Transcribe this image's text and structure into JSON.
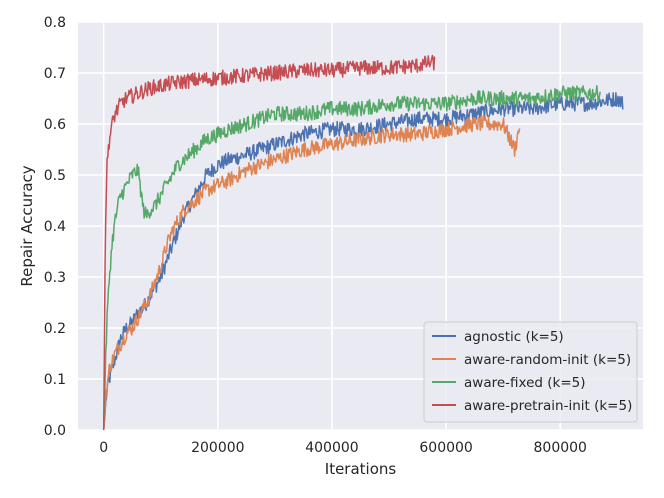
{
  "chart_data": {
    "type": "line",
    "title": "",
    "xlabel": "Iterations",
    "ylabel": "Repair Accuracy",
    "xlim": [
      -45000,
      945000
    ],
    "ylim": [
      0.0,
      0.8
    ],
    "xticks": [
      0,
      200000,
      400000,
      600000,
      800000
    ],
    "xtick_labels": [
      "0",
      "200000",
      "400000",
      "600000",
      "800000"
    ],
    "yticks": [
      0.0,
      0.1,
      0.2,
      0.3,
      0.4,
      0.5,
      0.6,
      0.7,
      0.8
    ],
    "ytick_labels": [
      "0.0",
      "0.1",
      "0.2",
      "0.3",
      "0.4",
      "0.5",
      "0.6",
      "0.7",
      "0.8"
    ],
    "grid": true,
    "legend_position": "bottom-right",
    "series": [
      {
        "name": "agnostic (k=5)",
        "color": "#4c72b0",
        "x": [
          0,
          5000,
          10000,
          20000,
          30000,
          40000,
          50000,
          60000,
          70000,
          80000,
          90000,
          100000,
          110000,
          120000,
          130000,
          140000,
          150000,
          160000,
          180000,
          200000,
          220000,
          250000,
          300000,
          350000,
          400000,
          450000,
          500000,
          550000,
          600000,
          650000,
          700000,
          750000,
          800000,
          850000,
          900000,
          910000
        ],
        "y": [
          0.0,
          0.07,
          0.1,
          0.14,
          0.18,
          0.2,
          0.21,
          0.23,
          0.24,
          0.26,
          0.28,
          0.3,
          0.33,
          0.36,
          0.39,
          0.42,
          0.44,
          0.46,
          0.5,
          0.52,
          0.53,
          0.54,
          0.56,
          0.58,
          0.59,
          0.59,
          0.6,
          0.61,
          0.61,
          0.62,
          0.63,
          0.63,
          0.64,
          0.64,
          0.65,
          0.64
        ]
      },
      {
        "name": "aware-random-init (k=5)",
        "color": "#dd8452",
        "x": [
          0,
          5000,
          10000,
          20000,
          30000,
          40000,
          50000,
          60000,
          70000,
          80000,
          90000,
          100000,
          110000,
          120000,
          130000,
          140000,
          150000,
          160000,
          180000,
          200000,
          220000,
          250000,
          300000,
          350000,
          400000,
          450000,
          500000,
          550000,
          600000,
          650000,
          700000,
          720000,
          730000
        ],
        "y": [
          0.0,
          0.08,
          0.12,
          0.15,
          0.17,
          0.19,
          0.2,
          0.22,
          0.24,
          0.26,
          0.29,
          0.32,
          0.36,
          0.39,
          0.41,
          0.43,
          0.44,
          0.45,
          0.47,
          0.48,
          0.49,
          0.51,
          0.53,
          0.55,
          0.56,
          0.57,
          0.58,
          0.58,
          0.59,
          0.6,
          0.6,
          0.55,
          0.6
        ]
      },
      {
        "name": "aware-fixed (k=5)",
        "color": "#55a868",
        "x": [
          0,
          3000,
          6000,
          10000,
          15000,
          20000,
          25000,
          30000,
          40000,
          50000,
          60000,
          65000,
          70000,
          75000,
          80000,
          90000,
          100000,
          110000,
          120000,
          130000,
          140000,
          150000,
          160000,
          180000,
          200000,
          220000,
          250000,
          300000,
          350000,
          400000,
          450000,
          500000,
          550000,
          600000,
          650000,
          700000,
          750000,
          800000,
          850000,
          870000
        ],
        "y": [
          0.0,
          0.12,
          0.22,
          0.3,
          0.37,
          0.41,
          0.44,
          0.46,
          0.48,
          0.5,
          0.51,
          0.47,
          0.43,
          0.42,
          0.43,
          0.44,
          0.46,
          0.48,
          0.5,
          0.52,
          0.53,
          0.54,
          0.55,
          0.57,
          0.58,
          0.59,
          0.6,
          0.62,
          0.62,
          0.63,
          0.63,
          0.64,
          0.64,
          0.64,
          0.65,
          0.65,
          0.65,
          0.66,
          0.66,
          0.66
        ]
      },
      {
        "name": "aware-pretrain-init (k=5)",
        "color": "#c44e52",
        "x": [
          0,
          2000,
          4000,
          6000,
          8000,
          10000,
          15000,
          20000,
          30000,
          40000,
          50000,
          60000,
          80000,
          100000,
          120000,
          150000,
          200000,
          250000,
          300000,
          350000,
          400000,
          450000,
          500000,
          550000,
          570000,
          580000
        ],
        "y": [
          0.0,
          0.3,
          0.45,
          0.52,
          0.55,
          0.57,
          0.6,
          0.62,
          0.64,
          0.65,
          0.655,
          0.66,
          0.67,
          0.675,
          0.68,
          0.685,
          0.69,
          0.695,
          0.7,
          0.705,
          0.705,
          0.71,
          0.71,
          0.715,
          0.72,
          0.72
        ]
      }
    ]
  }
}
